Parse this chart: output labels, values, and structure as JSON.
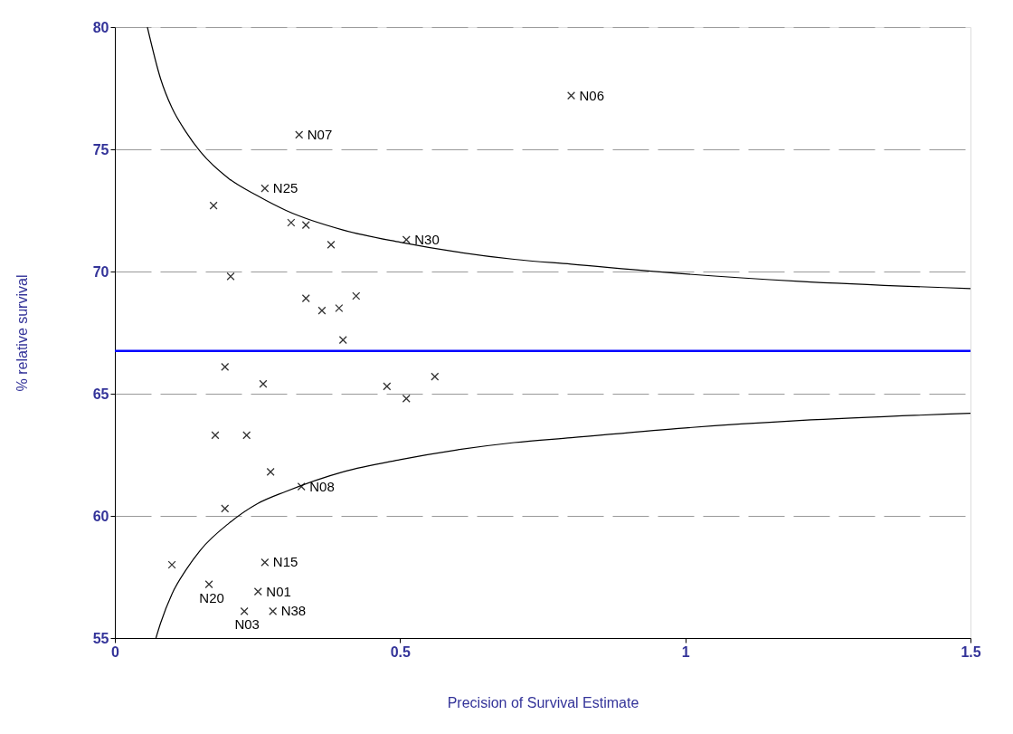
{
  "chart_data": {
    "type": "scatter",
    "xlabel": "Precision of Survival Estimate",
    "ylabel": "% relative survival",
    "xlim": [
      0,
      1.5
    ],
    "xticks": [
      0,
      0.5,
      1,
      1.5
    ],
    "ylim": [
      55,
      80
    ],
    "yticks": [
      55,
      60,
      65,
      70,
      75,
      80
    ],
    "grid": "y",
    "marker": "cross",
    "series": [
      {
        "color": "#333333",
        "x": [
          0.8,
          0.323,
          0.263,
          0.173,
          0.309,
          0.335,
          0.379,
          0.511,
          0.203,
          0.335,
          0.363,
          0.393,
          0.423,
          0.4,
          0.193,
          0.26,
          0.477,
          0.511,
          0.561,
          0.176,
          0.231,
          0.273,
          0.327,
          0.193,
          0.1,
          0.263,
          0.165,
          0.251,
          0.227,
          0.277
        ],
        "values": [
          77.2,
          75.6,
          73.4,
          72.7,
          72.0,
          71.9,
          71.1,
          71.3,
          69.8,
          68.9,
          68.4,
          68.5,
          69.0,
          67.2,
          66.1,
          65.4,
          65.3,
          64.8,
          65.7,
          63.3,
          63.3,
          61.8,
          61.2,
          60.3,
          58.0,
          58.1,
          57.2,
          56.9,
          56.1,
          56.1
        ]
      },
      {
        "type": "line",
        "color": "#000000",
        "marker": "none",
        "x": [
          0.057,
          0.08,
          0.1,
          0.125,
          0.15,
          0.2,
          0.25,
          0.3,
          0.4,
          0.5,
          0.6,
          0.7,
          0.8,
          1.0,
          1.2,
          1.5
        ],
        "values": [
          80,
          77.9,
          76.7,
          75.7,
          74.9,
          73.8,
          73.1,
          72.5,
          71.7,
          71.2,
          70.8,
          70.5,
          70.3,
          69.9,
          69.6,
          69.3
        ]
      },
      {
        "type": "line",
        "color": "#000000",
        "marker": "none",
        "x": [
          0.072,
          0.08,
          0.1,
          0.125,
          0.15,
          0.2,
          0.25,
          0.3,
          0.4,
          0.5,
          0.6,
          0.7,
          0.8,
          1.0,
          1.2,
          1.5
        ],
        "values": [
          55,
          55.6,
          56.8,
          57.8,
          58.6,
          59.7,
          60.5,
          61.0,
          61.8,
          62.3,
          62.7,
          63.0,
          63.2,
          63.6,
          63.9,
          64.2
        ]
      }
    ],
    "ref_lines": [
      {
        "axis": "y",
        "value": 66.75,
        "color": "#0000ff"
      }
    ],
    "annotations": [
      {
        "text": "N06",
        "x": 0.8,
        "y": 77.2
      },
      {
        "text": "N07",
        "x": 0.323,
        "y": 75.6
      },
      {
        "text": "N25",
        "x": 0.263,
        "y": 73.4
      },
      {
        "text": "N30",
        "x": 0.511,
        "y": 71.3
      },
      {
        "text": "N08",
        "x": 0.327,
        "y": 61.2
      },
      {
        "text": "N15",
        "x": 0.263,
        "y": 58.1
      },
      {
        "text": "N20",
        "x": 0.165,
        "y": 57.2
      },
      {
        "text": "N01",
        "x": 0.251,
        "y": 56.9
      },
      {
        "text": "N03",
        "x": 0.227,
        "y": 56.1
      },
      {
        "text": "N38",
        "x": 0.277,
        "y": 56.1
      }
    ]
  }
}
